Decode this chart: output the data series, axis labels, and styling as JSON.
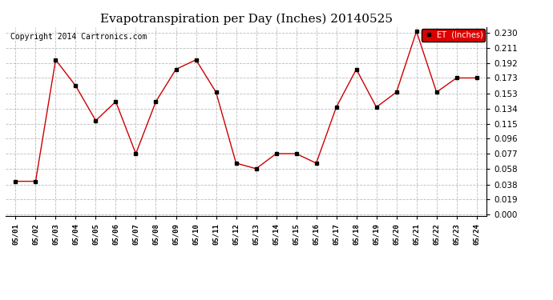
{
  "title": "Evapotranspiration per Day (Inches) 20140525",
  "copyright": "Copyright 2014 Cartronics.com",
  "legend_label": "ET  (Inches)",
  "x_labels": [
    "05/01",
    "05/02",
    "05/03",
    "05/04",
    "05/05",
    "05/06",
    "05/07",
    "05/08",
    "05/09",
    "05/10",
    "05/11",
    "05/12",
    "05/13",
    "05/14",
    "05/15",
    "05/16",
    "05/17",
    "05/18",
    "05/19",
    "05/20",
    "05/21",
    "05/22",
    "05/23",
    "05/24"
  ],
  "y_values": [
    0.042,
    0.042,
    0.196,
    0.163,
    0.119,
    0.143,
    0.077,
    0.143,
    0.184,
    0.196,
    0.155,
    0.065,
    0.058,
    0.077,
    0.077,
    0.065,
    0.136,
    0.184,
    0.136,
    0.155,
    0.232,
    0.155,
    0.173,
    0.173
  ],
  "ylim": [
    -0.002,
    0.2376
  ],
  "yticks": [
    0.0,
    0.019,
    0.038,
    0.058,
    0.077,
    0.096,
    0.115,
    0.134,
    0.153,
    0.173,
    0.192,
    0.211,
    0.23
  ],
  "line_color": "#cc0000",
  "marker_color": "#000000",
  "bg_color": "#ffffff",
  "grid_color": "#bbbbbb",
  "title_fontsize": 11,
  "copyright_fontsize": 7,
  "legend_bg": "#dd0000",
  "legend_text_color": "#ffffff"
}
